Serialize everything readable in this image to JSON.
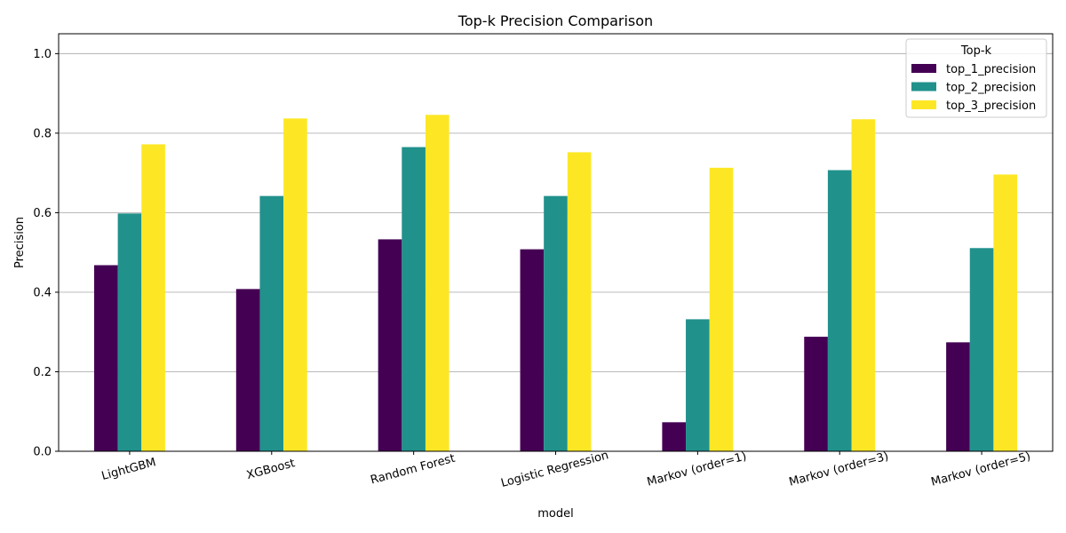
{
  "chart_data": {
    "type": "bar",
    "title": "Top-k Precision Comparison",
    "xlabel": "model",
    "ylabel": "Precision",
    "ylim": [
      0,
      1.05
    ],
    "yticks": [
      0.0,
      0.2,
      0.4,
      0.6,
      0.8,
      1.0
    ],
    "ytick_labels": [
      "0.0",
      "0.2",
      "0.4",
      "0.6",
      "0.8",
      "1.0"
    ],
    "grid": "y",
    "categories": [
      "LightGBM",
      "XGBoost",
      "Random Forest",
      "Logistic Regression",
      "Markov (order=1)",
      "Markov (order=3)",
      "Markov (order=5)"
    ],
    "xtick_rotation_deg": 15,
    "legend": {
      "title": "Top-k",
      "placement": "top-right"
    },
    "series": [
      {
        "name": "top_1_precision",
        "color": "#440154",
        "values": [
          0.468,
          0.408,
          0.533,
          0.508,
          0.073,
          0.288,
          0.274
        ]
      },
      {
        "name": "top_2_precision",
        "color": "#21918c",
        "values": [
          0.598,
          0.642,
          0.765,
          0.642,
          0.332,
          0.707,
          0.511
        ]
      },
      {
        "name": "top_3_precision",
        "color": "#fde725",
        "values": [
          0.772,
          0.837,
          0.846,
          0.752,
          0.713,
          0.835,
          0.696
        ]
      }
    ]
  }
}
